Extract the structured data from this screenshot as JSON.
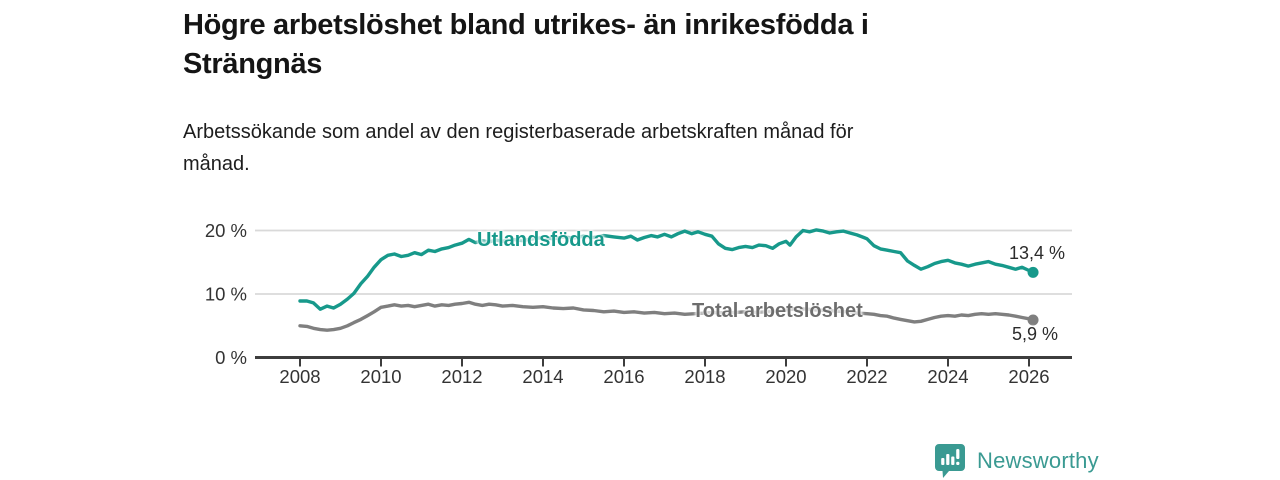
{
  "header": {
    "title_lines": [
      "Högre arbetslöshet bland utrikes- än inrikesfödda i",
      "Strängnäs"
    ],
    "subtitle_lines": [
      "Arbetssökande som andel av den registerbaserade arbetskraften månad för",
      "månad."
    ]
  },
  "footer": {
    "brand": "Newsworthy",
    "logo_icon": "bar-chart-speech-bubble-icon"
  },
  "colors": {
    "teal_series": "#17998b",
    "gray_series": "#7f7f7f",
    "gray_label": "#6d6d6d",
    "axis": "#3d3d3d",
    "gridline": "#d9d9d9",
    "tick_text": "#333333",
    "logo_teal": "#3a9a92"
  },
  "chart_data": {
    "type": "line",
    "title": "Högre arbetslöshet bland utrikes- än inrikesfödda i Strängnäs",
    "subtitle": "Arbetssökande som andel av den registerbaserade arbetskraften månad för månad.",
    "unit": "%",
    "grid": "horizontal-only",
    "legend_position": "inline-labels-on-lines",
    "xlim": [
      2006.9,
      2027.1
    ],
    "ylim": [
      0,
      21.5
    ],
    "x_ticks": [
      2008,
      2010,
      2012,
      2014,
      2016,
      2018,
      2020,
      2022,
      2024,
      2026
    ],
    "y_ticks": [
      {
        "value": 20,
        "label": "20 %"
      },
      {
        "value": 10,
        "label": "10 %"
      },
      {
        "value": 0,
        "label": "0 %"
      }
    ],
    "series": [
      {
        "name": "Utlandsfödda",
        "color": "#17998b",
        "end_value": 13.4,
        "end_label": "13,4 %",
        "points": [
          [
            2008.0,
            8.9
          ],
          [
            2008.17,
            8.9
          ],
          [
            2008.33,
            8.6
          ],
          [
            2008.5,
            7.6
          ],
          [
            2008.67,
            8.1
          ],
          [
            2008.83,
            7.8
          ],
          [
            2009.0,
            8.4
          ],
          [
            2009.17,
            9.2
          ],
          [
            2009.33,
            10.1
          ],
          [
            2009.5,
            11.6
          ],
          [
            2009.67,
            12.8
          ],
          [
            2009.83,
            14.2
          ],
          [
            2010.0,
            15.4
          ],
          [
            2010.17,
            16.1
          ],
          [
            2010.33,
            16.3
          ],
          [
            2010.5,
            15.9
          ],
          [
            2010.67,
            16.1
          ],
          [
            2010.83,
            16.5
          ],
          [
            2011.0,
            16.2
          ],
          [
            2011.17,
            16.9
          ],
          [
            2011.33,
            16.7
          ],
          [
            2011.5,
            17.1
          ],
          [
            2011.67,
            17.3
          ],
          [
            2011.83,
            17.7
          ],
          [
            2012.0,
            18.0
          ],
          [
            2012.17,
            18.6
          ],
          [
            2012.33,
            18.1
          ],
          [
            2012.5,
            18.4
          ],
          [
            2012.67,
            18.2
          ],
          [
            2012.83,
            18.5
          ],
          [
            2013.0,
            18.3
          ],
          [
            2013.25,
            18.6
          ],
          [
            2013.5,
            18.4
          ],
          [
            2013.75,
            18.7
          ],
          [
            2014.0,
            18.9
          ],
          [
            2014.25,
            18.7
          ],
          [
            2014.5,
            19.0
          ],
          [
            2014.75,
            18.8
          ],
          [
            2015.0,
            19.1
          ],
          [
            2015.25,
            18.9
          ],
          [
            2015.5,
            19.2
          ],
          [
            2015.75,
            19.0
          ],
          [
            2016.0,
            18.8
          ],
          [
            2016.17,
            19.1
          ],
          [
            2016.33,
            18.5
          ],
          [
            2016.5,
            18.9
          ],
          [
            2016.67,
            19.2
          ],
          [
            2016.83,
            19.0
          ],
          [
            2017.0,
            19.4
          ],
          [
            2017.17,
            19.0
          ],
          [
            2017.33,
            19.5
          ],
          [
            2017.5,
            19.9
          ],
          [
            2017.67,
            19.5
          ],
          [
            2017.83,
            19.8
          ],
          [
            2018.0,
            19.4
          ],
          [
            2018.17,
            19.1
          ],
          [
            2018.33,
            17.9
          ],
          [
            2018.5,
            17.2
          ],
          [
            2018.67,
            17.0
          ],
          [
            2018.83,
            17.3
          ],
          [
            2019.0,
            17.5
          ],
          [
            2019.17,
            17.3
          ],
          [
            2019.33,
            17.7
          ],
          [
            2019.5,
            17.6
          ],
          [
            2019.67,
            17.2
          ],
          [
            2019.83,
            17.9
          ],
          [
            2020.0,
            18.3
          ],
          [
            2020.1,
            17.7
          ],
          [
            2020.25,
            19.0
          ],
          [
            2020.42,
            20.0
          ],
          [
            2020.58,
            19.8
          ],
          [
            2020.75,
            20.1
          ],
          [
            2020.92,
            19.9
          ],
          [
            2021.08,
            19.6
          ],
          [
            2021.25,
            19.8
          ],
          [
            2021.42,
            19.9
          ],
          [
            2021.58,
            19.6
          ],
          [
            2021.75,
            19.3
          ],
          [
            2021.92,
            18.9
          ],
          [
            2022.0,
            18.7
          ],
          [
            2022.17,
            17.6
          ],
          [
            2022.33,
            17.1
          ],
          [
            2022.5,
            16.9
          ],
          [
            2022.67,
            16.7
          ],
          [
            2022.83,
            16.5
          ],
          [
            2023.0,
            15.2
          ],
          [
            2023.17,
            14.5
          ],
          [
            2023.33,
            13.9
          ],
          [
            2023.5,
            14.3
          ],
          [
            2023.67,
            14.8
          ],
          [
            2023.83,
            15.1
          ],
          [
            2024.0,
            15.3
          ],
          [
            2024.17,
            14.9
          ],
          [
            2024.33,
            14.7
          ],
          [
            2024.5,
            14.4
          ],
          [
            2024.67,
            14.7
          ],
          [
            2024.83,
            14.9
          ],
          [
            2025.0,
            15.1
          ],
          [
            2025.17,
            14.7
          ],
          [
            2025.33,
            14.5
          ],
          [
            2025.5,
            14.2
          ],
          [
            2025.67,
            13.9
          ],
          [
            2025.83,
            14.2
          ],
          [
            2026.0,
            13.7
          ],
          [
            2026.1,
            13.4
          ]
        ]
      },
      {
        "name": "Total arbetslöshet",
        "color": "#7f7f7f",
        "end_value": 5.9,
        "end_label": "5,9 %",
        "points": [
          [
            2008.0,
            5.0
          ],
          [
            2008.17,
            4.9
          ],
          [
            2008.33,
            4.6
          ],
          [
            2008.5,
            4.4
          ],
          [
            2008.67,
            4.3
          ],
          [
            2008.83,
            4.4
          ],
          [
            2009.0,
            4.6
          ],
          [
            2009.17,
            5.0
          ],
          [
            2009.33,
            5.5
          ],
          [
            2009.5,
            6.0
          ],
          [
            2009.67,
            6.6
          ],
          [
            2009.83,
            7.2
          ],
          [
            2010.0,
            7.9
          ],
          [
            2010.17,
            8.1
          ],
          [
            2010.33,
            8.3
          ],
          [
            2010.5,
            8.1
          ],
          [
            2010.67,
            8.2
          ],
          [
            2010.83,
            8.0
          ],
          [
            2011.0,
            8.2
          ],
          [
            2011.17,
            8.4
          ],
          [
            2011.33,
            8.1
          ],
          [
            2011.5,
            8.3
          ],
          [
            2011.67,
            8.2
          ],
          [
            2011.83,
            8.4
          ],
          [
            2012.0,
            8.5
          ],
          [
            2012.17,
            8.7
          ],
          [
            2012.33,
            8.4
          ],
          [
            2012.5,
            8.2
          ],
          [
            2012.67,
            8.4
          ],
          [
            2012.83,
            8.3
          ],
          [
            2013.0,
            8.1
          ],
          [
            2013.25,
            8.2
          ],
          [
            2013.5,
            8.0
          ],
          [
            2013.75,
            7.9
          ],
          [
            2014.0,
            8.0
          ],
          [
            2014.25,
            7.8
          ],
          [
            2014.5,
            7.7
          ],
          [
            2014.75,
            7.8
          ],
          [
            2015.0,
            7.5
          ],
          [
            2015.25,
            7.4
          ],
          [
            2015.5,
            7.2
          ],
          [
            2015.75,
            7.3
          ],
          [
            2016.0,
            7.1
          ],
          [
            2016.25,
            7.2
          ],
          [
            2016.5,
            7.0
          ],
          [
            2016.75,
            7.1
          ],
          [
            2017.0,
            6.9
          ],
          [
            2017.25,
            7.0
          ],
          [
            2017.5,
            6.8
          ],
          [
            2017.75,
            6.9
          ],
          [
            2018.0,
            7.0
          ],
          [
            2018.25,
            7.1
          ],
          [
            2018.5,
            7.0
          ],
          [
            2018.75,
            7.1
          ],
          [
            2019.0,
            7.2
          ],
          [
            2019.25,
            7.1
          ],
          [
            2019.5,
            7.2
          ],
          [
            2019.75,
            7.3
          ],
          [
            2020.0,
            7.5
          ],
          [
            2020.25,
            7.7
          ],
          [
            2020.5,
            7.6
          ],
          [
            2020.75,
            7.5
          ],
          [
            2021.0,
            7.4
          ],
          [
            2021.25,
            7.3
          ],
          [
            2021.5,
            7.2
          ],
          [
            2021.75,
            7.0
          ],
          [
            2022.0,
            6.9
          ],
          [
            2022.17,
            6.8
          ],
          [
            2022.33,
            6.6
          ],
          [
            2022.5,
            6.5
          ],
          [
            2022.67,
            6.2
          ],
          [
            2022.83,
            6.0
          ],
          [
            2023.0,
            5.8
          ],
          [
            2023.17,
            5.6
          ],
          [
            2023.33,
            5.7
          ],
          [
            2023.5,
            6.0
          ],
          [
            2023.67,
            6.3
          ],
          [
            2023.83,
            6.5
          ],
          [
            2024.0,
            6.6
          ],
          [
            2024.17,
            6.5
          ],
          [
            2024.33,
            6.7
          ],
          [
            2024.5,
            6.6
          ],
          [
            2024.67,
            6.8
          ],
          [
            2024.83,
            6.9
          ],
          [
            2025.0,
            6.8
          ],
          [
            2025.17,
            6.9
          ],
          [
            2025.33,
            6.8
          ],
          [
            2025.5,
            6.7
          ],
          [
            2025.67,
            6.5
          ],
          [
            2025.83,
            6.3
          ],
          [
            2026.0,
            6.1
          ],
          [
            2026.1,
            5.9
          ]
        ]
      }
    ]
  },
  "annotations": {
    "teal_series_label": "Utlandsfödda",
    "gray_series_label": "Total arbetslöshet",
    "teal_end_label": "13,4 %",
    "gray_end_label": "5,9 %"
  }
}
